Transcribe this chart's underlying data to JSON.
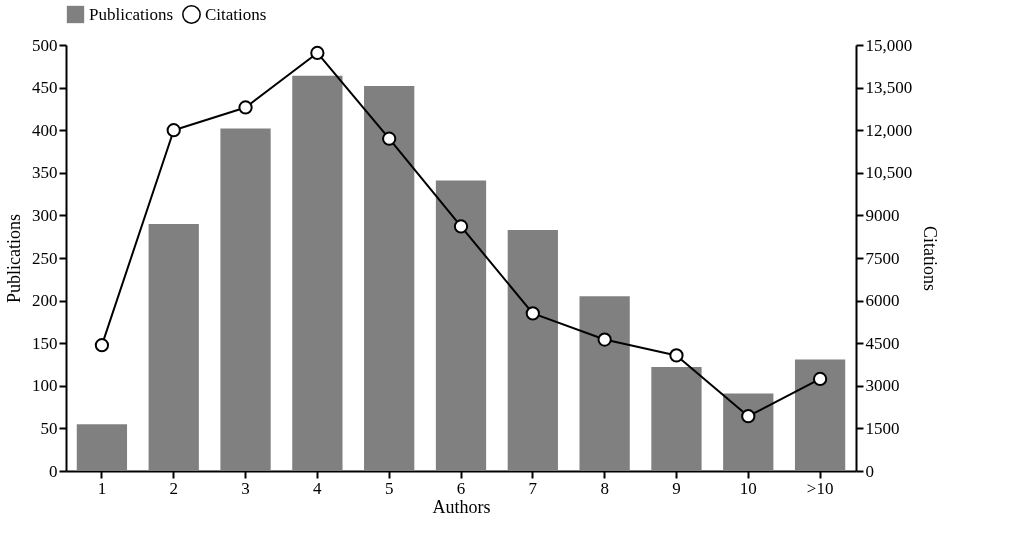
{
  "chart_data": {
    "type": "bar",
    "xlabel": "Authors",
    "ylabel": "Publications",
    "y2label": "Citations",
    "categories": [
      "1",
      "2",
      "3",
      "4",
      "5",
      "6",
      "7",
      "8",
      "9",
      "10",
      ">10"
    ],
    "series": [
      {
        "name": "Publications",
        "color": "#808080",
        "values": [
          55,
          290,
          402,
          464,
          452,
          341,
          283,
          205,
          122,
          91,
          131
        ]
      },
      {
        "name": "Citations",
        "type": "line",
        "axis": "y2",
        "color": "#000000",
        "values": [
          4430,
          12000,
          12800,
          14720,
          11700,
          8610,
          5550,
          4630,
          4070,
          1930,
          3240
        ]
      }
    ],
    "ylim": [
      0,
      500
    ],
    "yticks": [
      0,
      50,
      100,
      150,
      200,
      250,
      300,
      350,
      400,
      450,
      500
    ],
    "y2lim": [
      0,
      15000
    ],
    "y2ticks": [
      0,
      1500,
      3000,
      4500,
      6000,
      7500,
      9000,
      {
        "value": 10500,
        "label": "10,500"
      },
      {
        "value": 12000,
        "label": "12,000"
      },
      {
        "value": 13500,
        "label": "13,500"
      },
      {
        "value": 15000,
        "label": "15,000"
      }
    ],
    "marker": "circle",
    "legend": "top",
    "grid": false
  }
}
